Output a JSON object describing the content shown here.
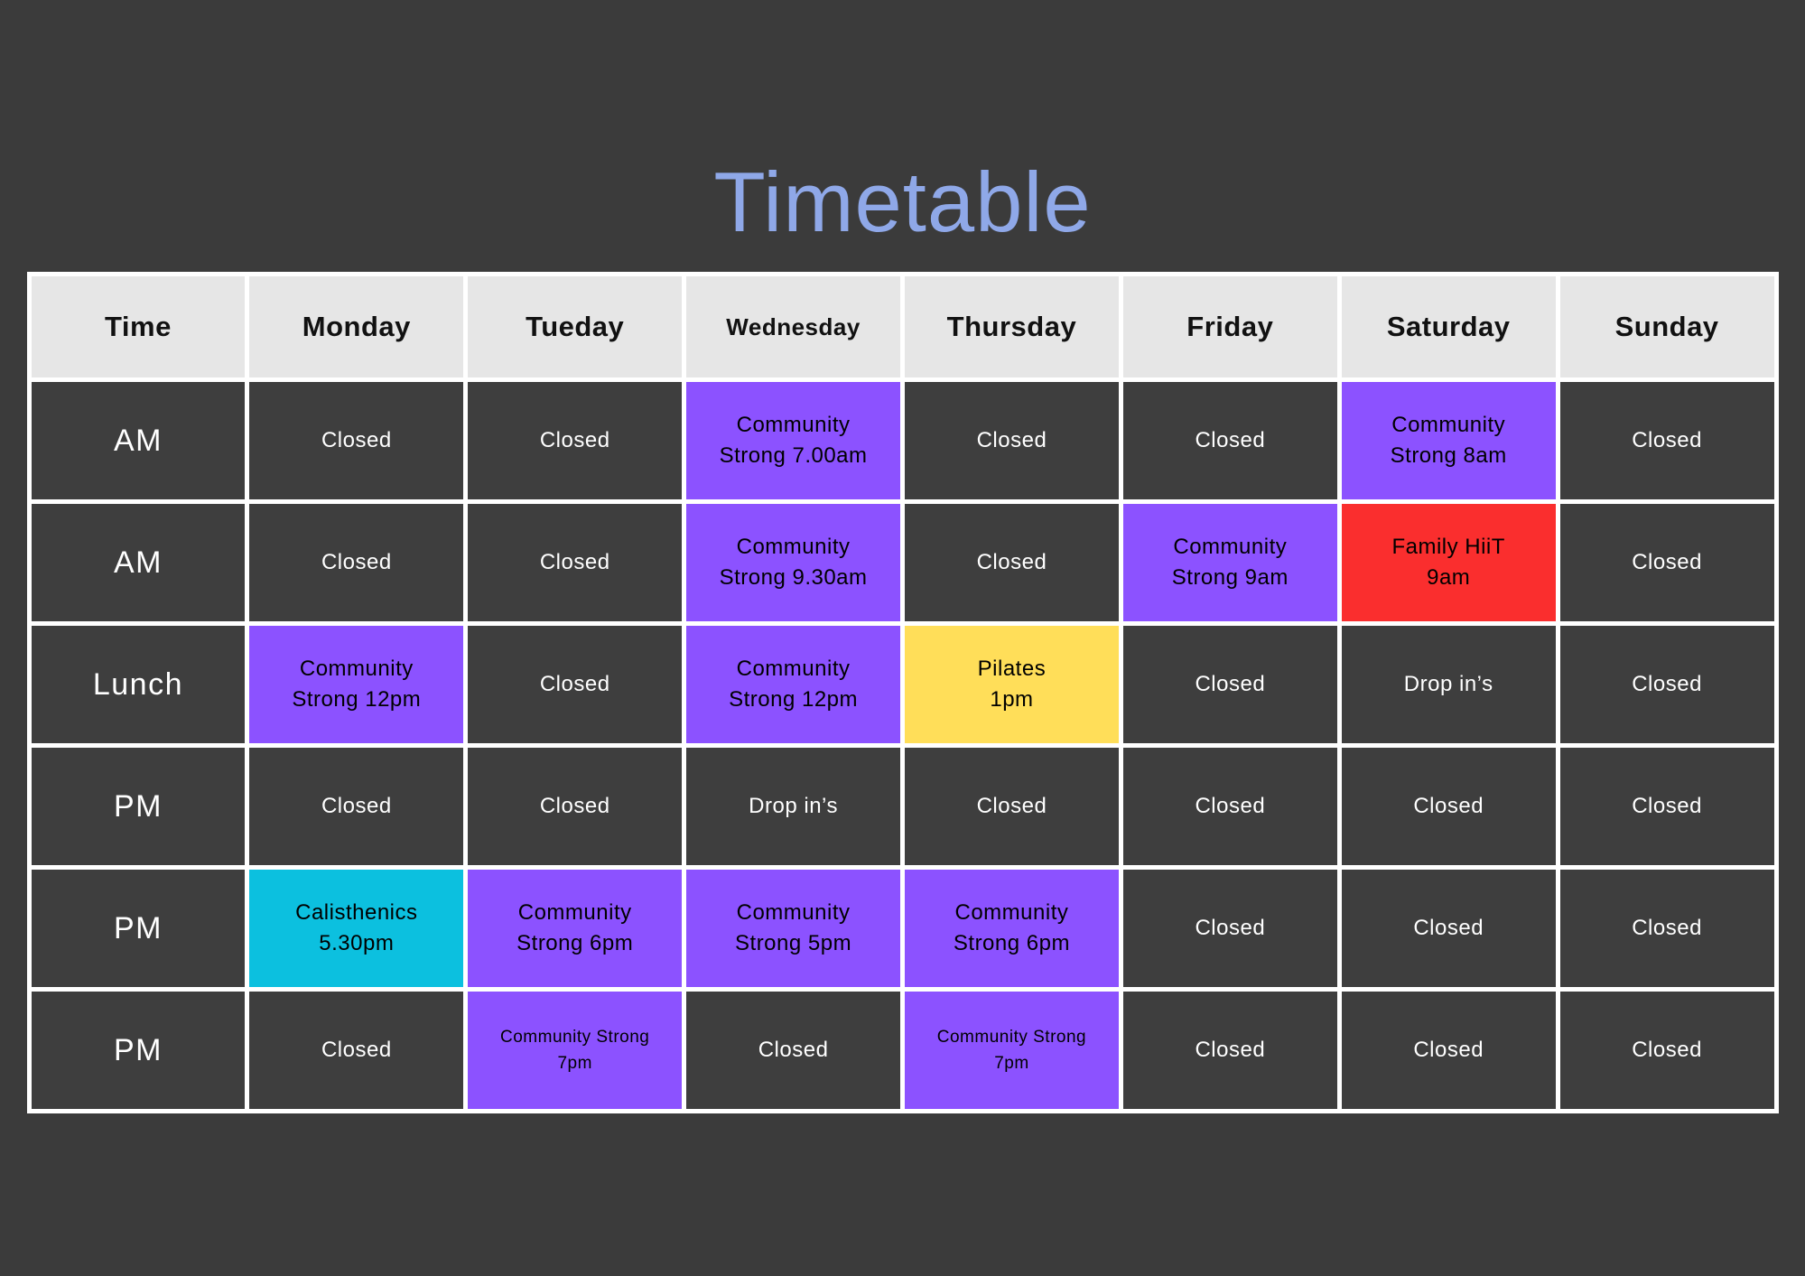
{
  "page": {
    "background": "#3b3b3b",
    "title": "Timetable",
    "title_color": "#8fa8e8"
  },
  "table": {
    "header_bg": "#e6e6e6",
    "cell_bg": "#3e3e3e",
    "gap_color": "#ffffff",
    "closed_text_color": "#ffffff",
    "event_text_color": "#000000",
    "colors": {
      "purple": "#8c52ff",
      "red": "#fa2e2e",
      "yellow": "#ffde59",
      "cyan": "#0cc0df"
    },
    "columns": [
      "Time",
      "Monday",
      "Tueday",
      "Wednesday",
      "Thursday",
      "Friday",
      "Saturday",
      "Sunday"
    ],
    "rows": [
      {
        "time": "AM",
        "cells": [
          {
            "lines": [
              "Closed"
            ],
            "color": "none"
          },
          {
            "lines": [
              "Closed"
            ],
            "color": "none"
          },
          {
            "lines": [
              "Community",
              "Strong 7.00am"
            ],
            "color": "purple"
          },
          {
            "lines": [
              "Closed"
            ],
            "color": "none"
          },
          {
            "lines": [
              "Closed"
            ],
            "color": "none"
          },
          {
            "lines": [
              "Community",
              "Strong 8am"
            ],
            "color": "purple"
          },
          {
            "lines": [
              "Closed"
            ],
            "color": "none"
          }
        ]
      },
      {
        "time": "AM",
        "cells": [
          {
            "lines": [
              "Closed"
            ],
            "color": "none"
          },
          {
            "lines": [
              "Closed"
            ],
            "color": "none"
          },
          {
            "lines": [
              "Community",
              "Strong 9.30am"
            ],
            "color": "purple"
          },
          {
            "lines": [
              "Closed"
            ],
            "color": "none"
          },
          {
            "lines": [
              "Community",
              "Strong 9am"
            ],
            "color": "purple"
          },
          {
            "lines": [
              "Family HiiT",
              "9am"
            ],
            "color": "red"
          },
          {
            "lines": [
              "Closed"
            ],
            "color": "none"
          }
        ]
      },
      {
        "time": "Lunch",
        "cells": [
          {
            "lines": [
              "Community",
              "Strong 12pm"
            ],
            "color": "purple"
          },
          {
            "lines": [
              "Closed"
            ],
            "color": "none"
          },
          {
            "lines": [
              "Community",
              "Strong 12pm"
            ],
            "color": "purple"
          },
          {
            "lines": [
              "Pilates",
              "1pm"
            ],
            "color": "yellow"
          },
          {
            "lines": [
              "Closed"
            ],
            "color": "none"
          },
          {
            "lines": [
              "Drop in’s"
            ],
            "color": "none"
          },
          {
            "lines": [
              "Closed"
            ],
            "color": "none"
          }
        ]
      },
      {
        "time": "PM",
        "cells": [
          {
            "lines": [
              "Closed"
            ],
            "color": "none"
          },
          {
            "lines": [
              "Closed"
            ],
            "color": "none"
          },
          {
            "lines": [
              "Drop in’s"
            ],
            "color": "none"
          },
          {
            "lines": [
              "Closed"
            ],
            "color": "none"
          },
          {
            "lines": [
              "Closed"
            ],
            "color": "none"
          },
          {
            "lines": [
              "Closed"
            ],
            "color": "none"
          },
          {
            "lines": [
              "Closed"
            ],
            "color": "none"
          }
        ]
      },
      {
        "time": "PM",
        "cells": [
          {
            "lines": [
              "Calisthenics",
              "5.30pm"
            ],
            "color": "cyan"
          },
          {
            "lines": [
              "Community",
              "Strong 6pm"
            ],
            "color": "purple"
          },
          {
            "lines": [
              "Community",
              "Strong 5pm"
            ],
            "color": "purple"
          },
          {
            "lines": [
              "Community",
              "Strong 6pm"
            ],
            "color": "purple"
          },
          {
            "lines": [
              "Closed"
            ],
            "color": "none"
          },
          {
            "lines": [
              "Closed"
            ],
            "color": "none"
          },
          {
            "lines": [
              "Closed"
            ],
            "color": "none"
          }
        ]
      },
      {
        "time": "PM",
        "cells": [
          {
            "lines": [
              "Closed"
            ],
            "color": "none"
          },
          {
            "lines": [
              "Community Strong",
              "7pm"
            ],
            "color": "purple"
          },
          {
            "lines": [
              "Closed"
            ],
            "color": "none"
          },
          {
            "lines": [
              "Community Strong",
              "7pm"
            ],
            "color": "purple"
          },
          {
            "lines": [
              "Closed"
            ],
            "color": "none"
          },
          {
            "lines": [
              "Closed"
            ],
            "color": "none"
          },
          {
            "lines": [
              "Closed"
            ],
            "color": "none"
          }
        ]
      }
    ]
  }
}
